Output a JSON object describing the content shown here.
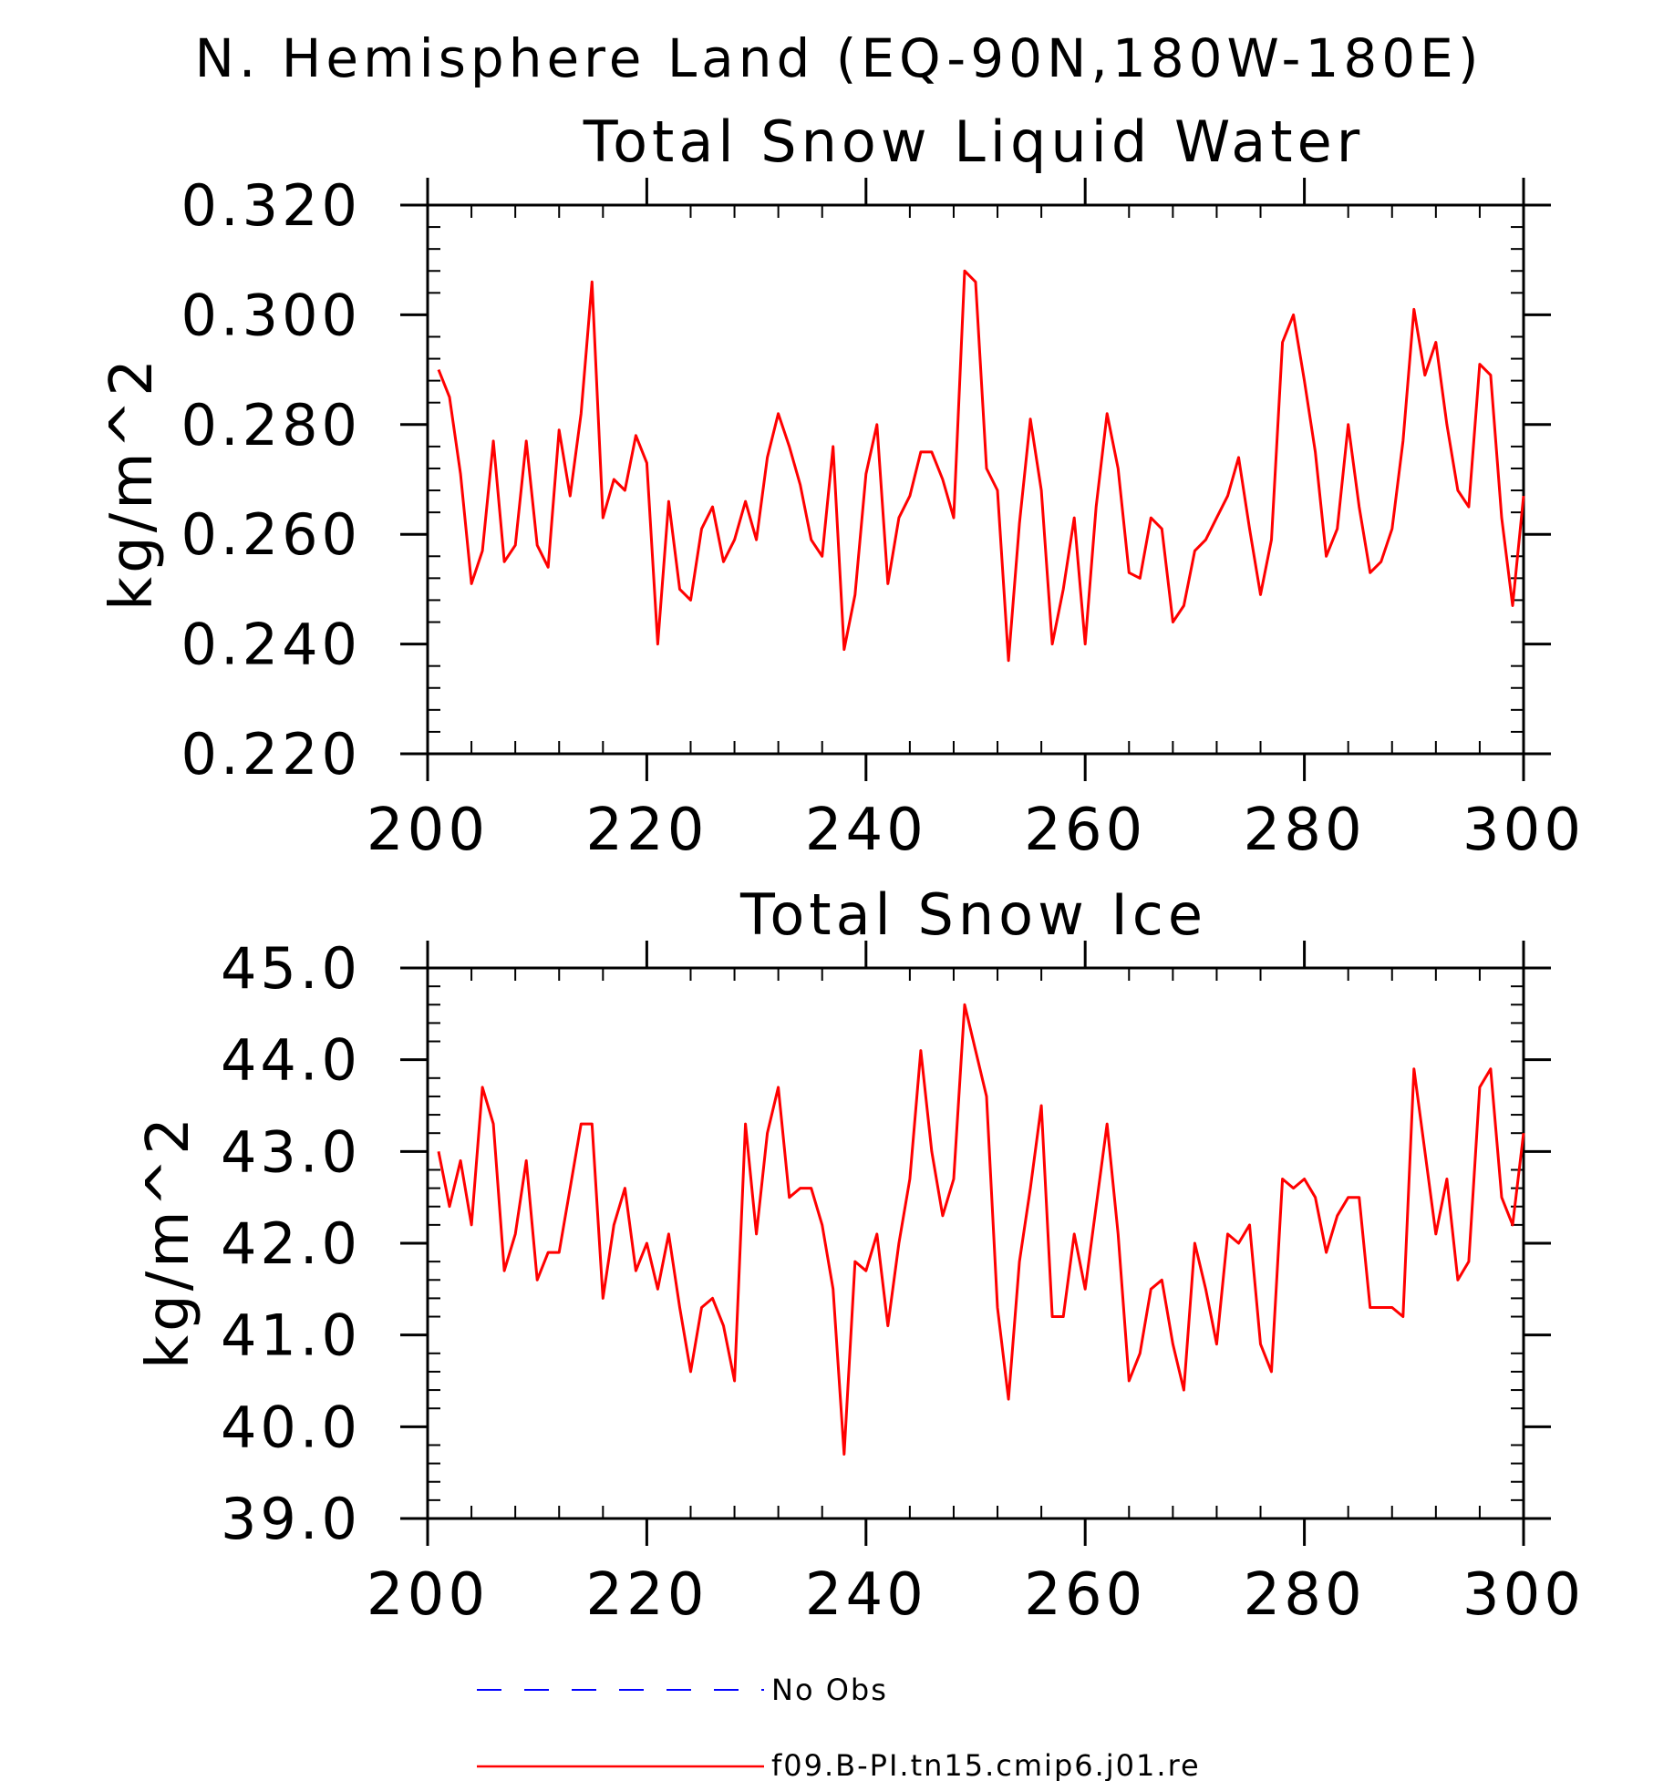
{
  "figure": {
    "title": "N. Hemisphere Land (EQ-90N,180W-180E)"
  },
  "legend": {
    "entries": [
      {
        "label": "No Obs",
        "color": "#0000ff",
        "style": "dashed"
      },
      {
        "label": "f09.B-PI.tn15.cmip6.j01.re",
        "color": "#ff0000",
        "style": "solid"
      }
    ]
  },
  "chart_data": [
    {
      "type": "line",
      "title": "Total Snow Liquid Water",
      "xlabel": "",
      "ylabel": "kg/m^2",
      "xlim": [
        200,
        300
      ],
      "ylim": [
        0.22,
        0.32
      ],
      "xticks": [
        200,
        220,
        240,
        260,
        280,
        300
      ],
      "xtick_labels": [
        "200",
        "220",
        "240",
        "260",
        "280",
        "300"
      ],
      "yticks": [
        0.22,
        0.24,
        0.26,
        0.28,
        0.3,
        0.32
      ],
      "ytick_labels": [
        "0.220",
        "0.240",
        "0.260",
        "0.280",
        "0.300",
        "0.320"
      ],
      "grid": false,
      "color": "#ff0000",
      "x_start": 201,
      "x_step": 1,
      "series": [
        {
          "name": "f09.B-PI.tn15.cmip6.j01.re",
          "values": [
            0.29,
            0.285,
            0.271,
            0.251,
            0.257,
            0.277,
            0.255,
            0.258,
            0.277,
            0.258,
            0.254,
            0.279,
            0.267,
            0.282,
            0.306,
            0.263,
            0.27,
            0.268,
            0.278,
            0.273,
            0.24,
            0.266,
            0.25,
            0.248,
            0.261,
            0.265,
            0.255,
            0.259,
            0.266,
            0.259,
            0.274,
            0.282,
            0.276,
            0.269,
            0.259,
            0.256,
            0.276,
            0.239,
            0.249,
            0.271,
            0.28,
            0.251,
            0.263,
            0.267,
            0.275,
            0.275,
            0.27,
            0.263,
            0.308,
            0.306,
            0.272,
            0.268,
            0.237,
            0.262,
            0.281,
            0.268,
            0.24,
            0.25,
            0.263,
            0.24,
            0.265,
            0.282,
            0.272,
            0.253,
            0.252,
            0.263,
            0.261,
            0.244,
            0.247,
            0.257,
            0.259,
            0.263,
            0.267,
            0.274,
            0.261,
            0.249,
            0.259,
            0.295,
            0.3,
            0.288,
            0.275,
            0.256,
            0.261,
            0.28,
            0.265,
            0.253,
            0.255,
            0.261,
            0.277,
            0.301,
            0.289,
            0.295,
            0.28,
            0.268,
            0.265,
            0.291,
            0.289,
            0.263,
            0.247,
            0.267
          ]
        }
      ]
    },
    {
      "type": "line",
      "title": "Total Snow Ice",
      "xlabel": "",
      "ylabel": "kg/m^2",
      "xlim": [
        200,
        300
      ],
      "ylim": [
        39.0,
        45.0
      ],
      "xticks": [
        200,
        220,
        240,
        260,
        280,
        300
      ],
      "xtick_labels": [
        "200",
        "220",
        "240",
        "260",
        "280",
        "300"
      ],
      "yticks": [
        39.0,
        40.0,
        41.0,
        42.0,
        43.0,
        44.0,
        45.0
      ],
      "ytick_labels": [
        "39.0",
        "40.0",
        "41.0",
        "42.0",
        "43.0",
        "44.0",
        "45.0"
      ],
      "grid": false,
      "color": "#ff0000",
      "x_start": 201,
      "x_step": 1,
      "series": [
        {
          "name": "f09.B-PI.tn15.cmip6.j01.re",
          "values": [
            43.0,
            42.4,
            42.9,
            42.2,
            43.7,
            43.3,
            41.7,
            42.1,
            42.9,
            41.6,
            41.9,
            41.9,
            42.6,
            43.3,
            43.3,
            41.4,
            42.2,
            42.6,
            41.7,
            42.0,
            41.5,
            42.1,
            41.3,
            40.6,
            41.3,
            41.4,
            41.1,
            40.5,
            43.3,
            42.1,
            43.2,
            43.7,
            42.5,
            42.6,
            42.6,
            42.2,
            41.5,
            39.7,
            41.8,
            41.7,
            42.1,
            41.1,
            42.0,
            42.7,
            44.1,
            43.0,
            42.3,
            42.7,
            44.6,
            44.1,
            43.6,
            41.3,
            40.3,
            41.8,
            42.6,
            43.5,
            41.2,
            41.2,
            42.1,
            41.5,
            42.4,
            43.3,
            42.1,
            40.5,
            40.8,
            41.5,
            41.6,
            40.9,
            40.4,
            42.0,
            41.5,
            40.9,
            42.1,
            42.0,
            42.2,
            40.9,
            40.6,
            42.7,
            42.6,
            42.7,
            42.5,
            41.9,
            42.3,
            42.5,
            42.5,
            41.3,
            41.3,
            41.3,
            41.2,
            43.9,
            43.0,
            42.1,
            42.7,
            41.6,
            41.8,
            43.7,
            43.9,
            42.5,
            42.2,
            43.2
          ]
        }
      ]
    }
  ]
}
